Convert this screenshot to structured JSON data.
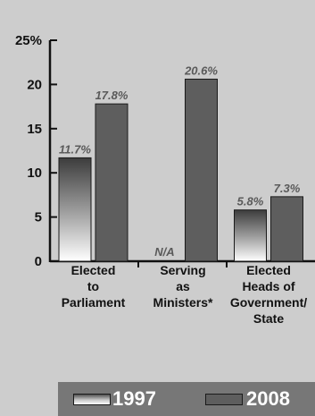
{
  "chart_data": {
    "type": "bar",
    "categories": [
      [
        "Elected",
        "to",
        "Parliament"
      ],
      [
        "Serving",
        "as",
        "Ministers*"
      ],
      [
        "Elected",
        "Heads of",
        "Government/",
        "State"
      ]
    ],
    "series": [
      {
        "name": "1997",
        "values": [
          11.7,
          null,
          5.8
        ],
        "labels": [
          "11.7%",
          "N/A",
          "5.8%"
        ]
      },
      {
        "name": "2008",
        "values": [
          17.8,
          20.6,
          7.3
        ],
        "labels": [
          "17.8%",
          "20.6%",
          "7.3%"
        ]
      }
    ],
    "yticks": [
      "0",
      "5",
      "10",
      "15",
      "20",
      "25%"
    ],
    "ylim": [
      0,
      25
    ],
    "grid": false,
    "legend_position": "bottom"
  },
  "legend": {
    "items": [
      "1997",
      "2008"
    ]
  },
  "colors": {
    "background": "#cdcdcd",
    "bar_2008": "#5e5e5e",
    "label_text": "#5a5a5a",
    "legend_bg": "#777777"
  }
}
